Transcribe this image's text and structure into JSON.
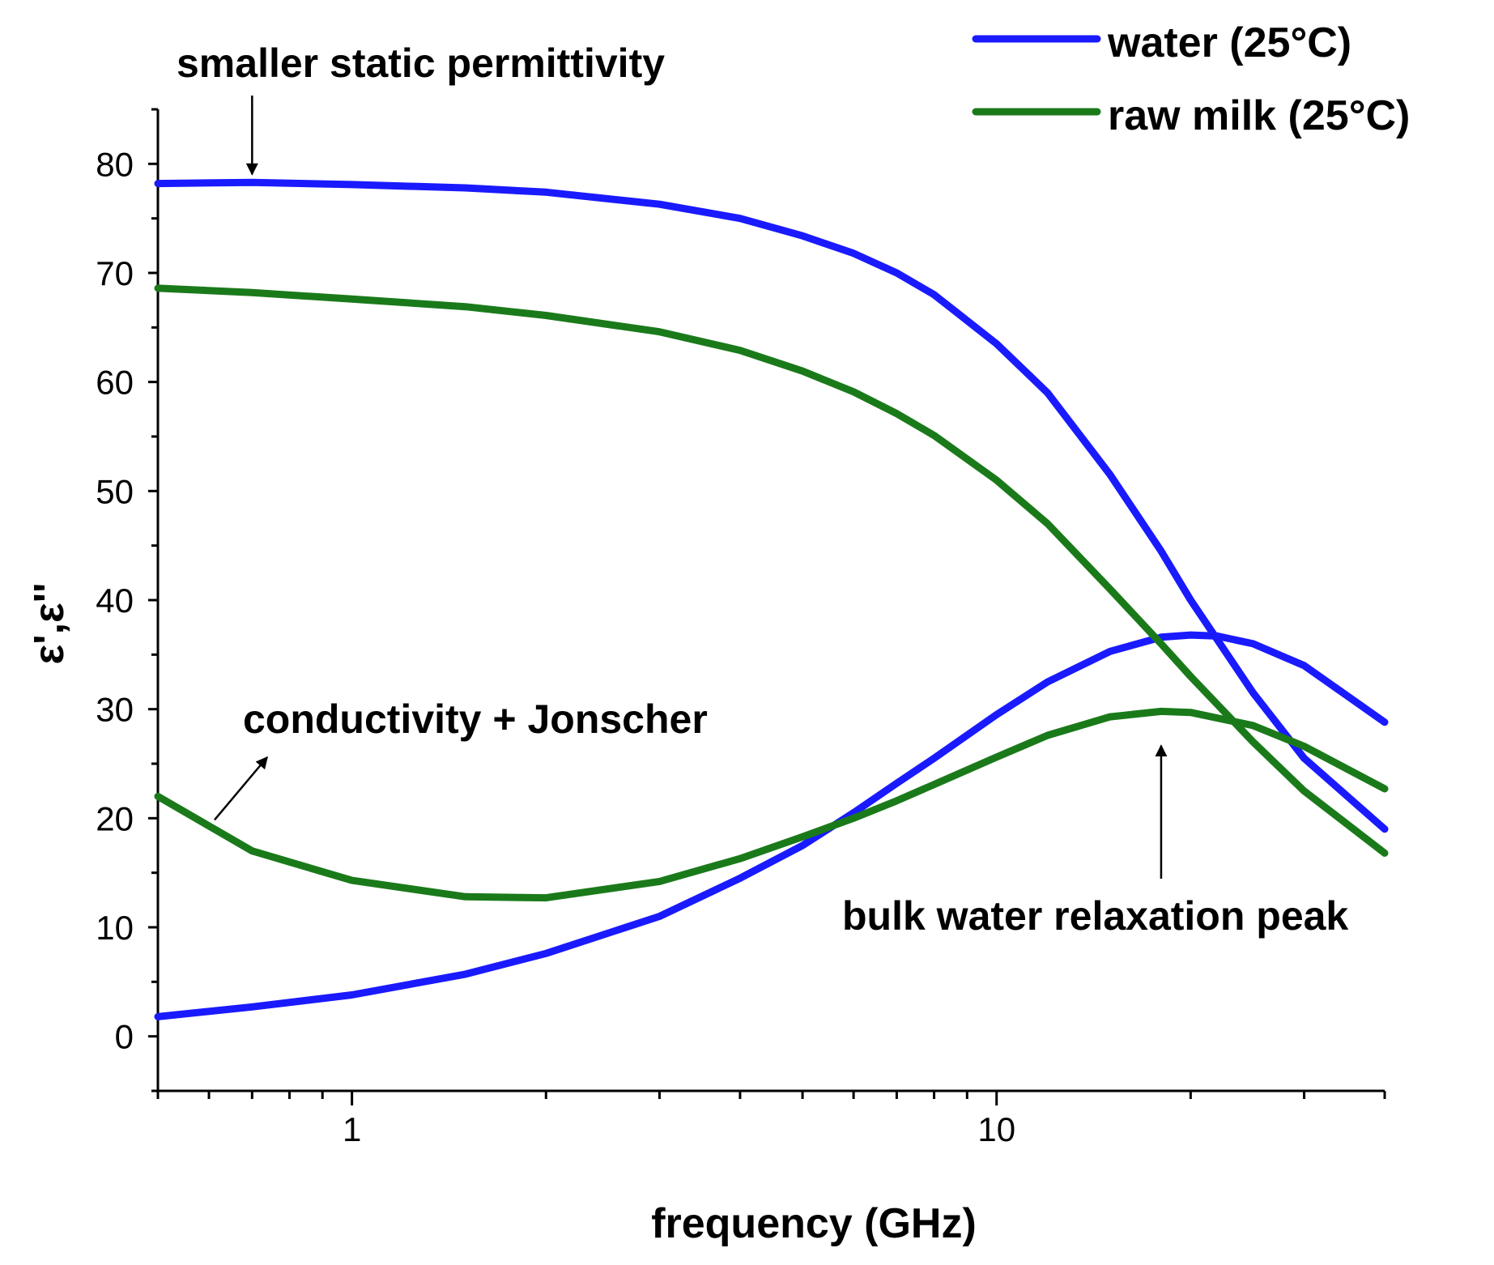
{
  "chart_data": {
    "type": "line",
    "xscale": "log",
    "xlabel": "frequency (GHz)",
    "ylabel": "ε',ε''",
    "xlim": [
      0.5,
      40
    ],
    "ylim": [
      -5,
      85
    ],
    "xticks": [
      1,
      10
    ],
    "yticks": [
      0,
      10,
      20,
      30,
      40,
      50,
      60,
      70,
      80
    ],
    "grid": false,
    "legend_position": "top-right",
    "colors": {
      "water": "#1a1aff",
      "milk": "#1a7a1a"
    },
    "series": [
      {
        "name": "water (25°C)",
        "component": "real",
        "color": "#1a1aff",
        "x": [
          0.5,
          0.7,
          1,
          1.5,
          2,
          3,
          4,
          5,
          6,
          7,
          8,
          10,
          12,
          15,
          18,
          20,
          25,
          30,
          40
        ],
        "y": [
          78.2,
          78.3,
          78.1,
          77.8,
          77.4,
          76.3,
          75,
          73.4,
          71.8,
          70,
          68,
          63.5,
          59,
          51.5,
          44.5,
          40,
          31.5,
          25.5,
          19
        ]
      },
      {
        "name": "water (25°C)",
        "component": "imaginary",
        "color": "#1a1aff",
        "x": [
          0.5,
          0.7,
          1,
          1.5,
          2,
          3,
          4,
          5,
          6,
          7,
          8,
          10,
          12,
          15,
          18,
          20,
          22,
          25,
          30,
          40
        ],
        "y": [
          1.8,
          2.7,
          3.8,
          5.7,
          7.6,
          11,
          14.5,
          17.5,
          20.5,
          23.2,
          25.5,
          29.5,
          32.5,
          35.3,
          36.6,
          36.8,
          36.7,
          36,
          34,
          28.8
        ]
      },
      {
        "name": "raw milk (25°C)",
        "component": "real",
        "color": "#1a7a1a",
        "x": [
          0.5,
          0.7,
          1,
          1.5,
          2,
          3,
          4,
          5,
          6,
          7,
          8,
          10,
          12,
          15,
          18,
          20,
          25,
          30,
          40
        ],
        "y": [
          68.6,
          68.2,
          67.6,
          66.9,
          66.1,
          64.6,
          62.9,
          61,
          59.1,
          57.1,
          55.1,
          51,
          47,
          41,
          36,
          33,
          27,
          22.5,
          16.8
        ]
      },
      {
        "name": "raw milk (25°C)",
        "component": "imaginary",
        "color": "#1a7a1a",
        "x": [
          0.5,
          0.7,
          1,
          1.5,
          2,
          3,
          4,
          5,
          6,
          7,
          8,
          10,
          12,
          15,
          18,
          20,
          25,
          30,
          40
        ],
        "y": [
          22,
          17,
          14.3,
          12.8,
          12.7,
          14.2,
          16.3,
          18.3,
          20,
          21.6,
          23.1,
          25.6,
          27.6,
          29.3,
          29.8,
          29.7,
          28.5,
          26.6,
          22.7
        ]
      }
    ],
    "annotations": [
      {
        "text": "smaller static permittivity",
        "points_to": {
          "x": 0.7,
          "y": 78.3
        }
      },
      {
        "text": "conductivity + Jonscher",
        "points_to": {
          "x": 0.5,
          "y": 20
        }
      },
      {
        "text": "bulk water relaxation peak",
        "points_to": {
          "x": 18,
          "y": 30
        }
      }
    ]
  }
}
